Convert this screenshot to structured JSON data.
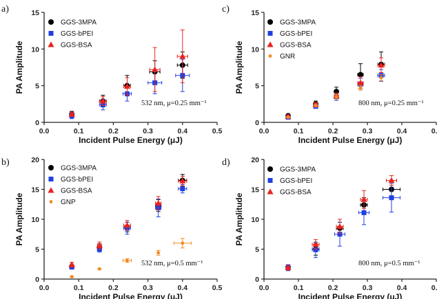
{
  "colors": {
    "GGS-3MPA": "#000000",
    "GGS-bPEI": "#1f3fe0",
    "GGS-BSA": "#e8231e",
    "GNR": "#f08a24",
    "GNP": "#f08a24"
  },
  "chart_data": [
    {
      "panel": "a)",
      "type": "scatter",
      "xlabel": "Incident Pulse Energy (μJ)",
      "ylabel": "PA Amplitude",
      "xlim": [
        0.0,
        0.5
      ],
      "ylim": [
        0,
        15
      ],
      "xticks": [
        "0.0",
        "0.1",
        "0.2",
        "0.3",
        "0.4",
        "0.5"
      ],
      "yticks": [
        "0",
        "5",
        "10",
        "15"
      ],
      "annotation": "532 nm, μ=0.25 mm⁻¹",
      "legend_position": "top-left",
      "series": [
        {
          "name": "GGS-3MPA",
          "marker": "circle",
          "x": [
            0.08,
            0.17,
            0.24,
            0.32,
            0.4
          ],
          "y": [
            1.1,
            2.9,
            5.0,
            6.9,
            7.8
          ],
          "yerr": [
            0.4,
            0.8,
            1.4,
            1.5,
            1.8
          ],
          "xerr": [
            0.004,
            0.01,
            0.01,
            0.015,
            0.015
          ]
        },
        {
          "name": "GGS-bPEI",
          "marker": "square",
          "x": [
            0.08,
            0.17,
            0.24,
            0.32,
            0.4
          ],
          "y": [
            0.9,
            2.4,
            3.9,
            5.4,
            6.4
          ],
          "yerr": [
            0.4,
            0.7,
            1.0,
            1.5,
            2.2
          ],
          "xerr": [
            0.004,
            0.01,
            0.012,
            0.02,
            0.02
          ]
        },
        {
          "name": "GGS-BSA",
          "marker": "triangle",
          "x": [
            0.08,
            0.17,
            0.24,
            0.32,
            0.4
          ],
          "y": [
            1.1,
            2.9,
            4.9,
            7.2,
            9.0
          ],
          "yerr": [
            0.3,
            0.6,
            1.2,
            3.0,
            3.6
          ],
          "xerr": [
            0.004,
            0.01,
            0.01,
            0.015,
            0.015
          ]
        }
      ]
    },
    {
      "panel": "c)",
      "type": "scatter",
      "xlabel": "Incident Pulse Energy (μJ)",
      "ylabel": "PA Amplitude",
      "xlim": [
        0.0,
        0.5
      ],
      "ylim": [
        0,
        15
      ],
      "xticks": [
        "0.0",
        "0.1",
        "0.2",
        "0.3",
        "0.4",
        "0.5"
      ],
      "yticks": [
        "0",
        "5",
        "10",
        "15"
      ],
      "annotation": "800 nm, μ=0.25 mm⁻¹",
      "legend_position": "top-left",
      "series": [
        {
          "name": "GGS-3MPA",
          "marker": "circle",
          "x": [
            0.07,
            0.15,
            0.21,
            0.28,
            0.34
          ],
          "y": [
            0.9,
            2.5,
            4.2,
            6.5,
            7.9
          ],
          "yerr": [
            0.2,
            0.4,
            0.6,
            1.5,
            1.7
          ],
          "xerr": [
            0.003,
            0.005,
            0.006,
            0.008,
            0.01
          ]
        },
        {
          "name": "GGS-bPEI",
          "marker": "square",
          "x": [
            0.07,
            0.15,
            0.21,
            0.28,
            0.34
          ],
          "y": [
            0.7,
            2.2,
            3.5,
            5.2,
            6.4
          ],
          "yerr": [
            0.2,
            0.3,
            0.5,
            0.8,
            0.8
          ],
          "xerr": [
            0.003,
            0.005,
            0.006,
            0.008,
            0.01
          ]
        },
        {
          "name": "GGS-BSA",
          "marker": "triangle",
          "x": [
            0.07,
            0.15,
            0.21,
            0.28,
            0.34
          ],
          "y": [
            0.8,
            2.4,
            3.6,
            5.4,
            7.8
          ],
          "yerr": [
            0.2,
            0.3,
            0.4,
            0.8,
            1.0
          ],
          "xerr": [
            0.003,
            0.005,
            0.006,
            0.008,
            0.01
          ]
        },
        {
          "name": "GNR",
          "marker": "circle-small",
          "x": [
            0.07,
            0.15,
            0.21,
            0.28,
            0.34
          ],
          "y": [
            0.7,
            2.3,
            3.5,
            4.7,
            6.1
          ],
          "yerr": [
            0.1,
            0.2,
            0.3,
            0.3,
            0.4
          ],
          "xerr": [
            0.0,
            0.0,
            0.0,
            0.0,
            0.0
          ]
        }
      ]
    },
    {
      "panel": "b)",
      "type": "scatter",
      "xlabel": "Incident Pulse Energy (μJ)",
      "ylabel": "PA Amplitude",
      "xlim": [
        0.0,
        0.5
      ],
      "ylim": [
        0,
        20
      ],
      "xticks": [
        "0.0",
        "0.1",
        "0.2",
        "0.3",
        "0.4",
        "0.5"
      ],
      "yticks": [
        "0",
        "5",
        "10",
        "15",
        "20"
      ],
      "annotation": "532 nm, μ=0.5 mm⁻¹",
      "legend_position": "top-left",
      "series": [
        {
          "name": "GGS-3MPA",
          "marker": "circle",
          "x": [
            0.08,
            0.16,
            0.24,
            0.33,
            0.4
          ],
          "y": [
            2.1,
            5.3,
            8.7,
            12.3,
            16.5
          ],
          "yerr": [
            0.3,
            0.6,
            0.8,
            1.0,
            1.0
          ],
          "xerr": [
            0.003,
            0.006,
            0.01,
            0.008,
            0.012
          ]
        },
        {
          "name": "GGS-bPEI",
          "marker": "square",
          "x": [
            0.08,
            0.16,
            0.24,
            0.33,
            0.4
          ],
          "y": [
            2.0,
            5.0,
            8.5,
            11.9,
            15.1
          ],
          "yerr": [
            0.3,
            0.5,
            1.0,
            1.5,
            0.7
          ],
          "xerr": [
            0.003,
            0.006,
            0.01,
            0.008,
            0.012
          ]
        },
        {
          "name": "GGS-BSA",
          "marker": "triangle",
          "x": [
            0.08,
            0.16,
            0.24,
            0.33,
            0.4
          ],
          "y": [
            2.4,
            5.6,
            9.0,
            12.7,
            16.4
          ],
          "yerr": [
            0.4,
            0.6,
            0.8,
            1.1,
            0.8
          ],
          "xerr": [
            0.003,
            0.006,
            0.01,
            0.008,
            0.012
          ]
        },
        {
          "name": "GNP",
          "marker": "circle-small",
          "x": [
            0.08,
            0.16,
            0.24,
            0.33,
            0.4
          ],
          "y": [
            0.4,
            1.7,
            3.1,
            4.4,
            6.0
          ],
          "yerr": [
            0.1,
            0.1,
            0.3,
            0.4,
            0.8
          ],
          "xerr": [
            0.0,
            0.0,
            0.012,
            0.0,
            0.025
          ]
        }
      ]
    },
    {
      "panel": "d)",
      "type": "scatter",
      "xlabel": "Incident Pulse Energy (μJ)",
      "ylabel": "PA Amplitude",
      "xlim": [
        0.0,
        0.5
      ],
      "ylim": [
        0,
        20
      ],
      "xticks": [
        "0.0",
        "0.1",
        "0.2",
        "0.3",
        "0.4",
        "0.5"
      ],
      "yticks": [
        "0",
        "5",
        "10",
        "15",
        "20"
      ],
      "annotation": "800 nm, μ=0.5 mm⁻¹",
      "legend_position": "top-left",
      "series": [
        {
          "name": "GGS-3MPA",
          "marker": "circle",
          "x": [
            0.07,
            0.15,
            0.22,
            0.29,
            0.37
          ],
          "y": [
            2.0,
            5.0,
            8.5,
            12.4,
            15.0
          ],
          "yerr": [
            0.4,
            1.0,
            1.0,
            1.2,
            1.4
          ],
          "xerr": [
            0.004,
            0.01,
            0.01,
            0.01,
            0.025
          ]
        },
        {
          "name": "GGS-bPEI",
          "marker": "square",
          "x": [
            0.07,
            0.15,
            0.22,
            0.29,
            0.37
          ],
          "y": [
            1.9,
            4.9,
            7.5,
            11.1,
            13.6
          ],
          "yerr": [
            0.5,
            1.3,
            2.0,
            2.0,
            2.4
          ],
          "xerr": [
            0.004,
            0.01,
            0.015,
            0.015,
            0.025
          ]
        },
        {
          "name": "GGS-BSA",
          "marker": "triangle",
          "x": [
            0.07,
            0.15,
            0.22,
            0.29,
            0.37
          ],
          "y": [
            1.9,
            5.8,
            8.8,
            13.3,
            16.5
          ],
          "yerr": [
            0.4,
            0.8,
            1.2,
            1.5,
            0.8
          ],
          "xerr": [
            0.004,
            0.01,
            0.01,
            0.01,
            0.015
          ]
        }
      ]
    }
  ]
}
